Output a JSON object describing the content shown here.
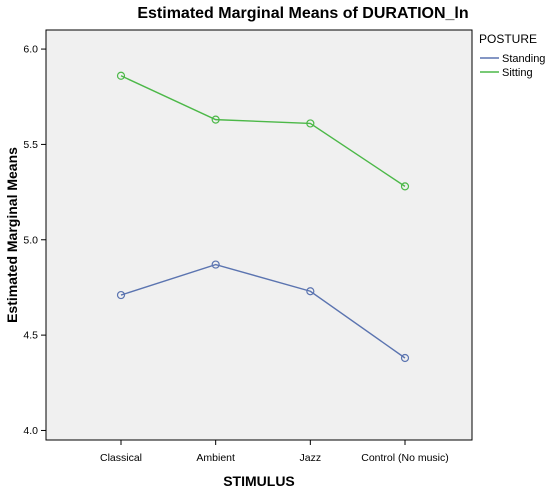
{
  "chart_data": {
    "type": "line",
    "title": "Estimated Marginal Means of DURATION_ln",
    "xlabel": "STIMULUS",
    "ylabel": "Estimated Marginal Means",
    "categories": [
      "Classical",
      "Ambient",
      "Jazz",
      "Control (No music)"
    ],
    "ylim": [
      3.95,
      6.1
    ],
    "yticks": [
      4.0,
      4.5,
      5.0,
      5.5,
      6.0
    ],
    "ytick_labels": [
      "4.0",
      "4.5",
      "5.0",
      "5.5",
      "6.0"
    ],
    "legend": {
      "title": "POSTURE",
      "placement": "right"
    },
    "grid": false,
    "background": "#f0f0f0",
    "series": [
      {
        "name": "Standing",
        "color": "#5b74b0",
        "values": [
          4.71,
          4.87,
          4.73,
          4.38
        ]
      },
      {
        "name": "Sitting",
        "color": "#4cb848",
        "values": [
          5.86,
          5.63,
          5.61,
          5.28
        ]
      }
    ]
  }
}
